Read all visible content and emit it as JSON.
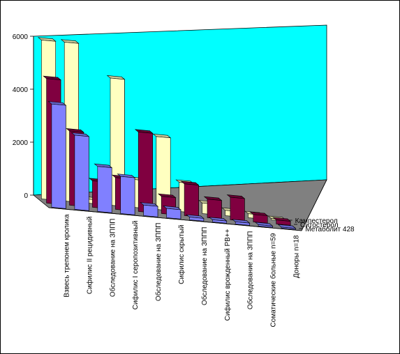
{
  "chart_data": {
    "type": "bar",
    "variant": "3d-depth-columns",
    "categories": [
      "Взвесь трепонем кролика",
      "Сифилис II рецидивный",
      "Обследование на ЗППП",
      "Сифилис I серопозитивный",
      "Обследование на ЗППП",
      "Сифилис скрытый",
      "Обследование на ЗППП",
      "Сифилис врожденный РВ++",
      "Обследование на ЗППП",
      "Соматические больные n=59",
      "Доноры n=18"
    ],
    "series": [
      {
        "name": "Метаболит 428",
        "values": [
          3900,
          2800,
          1700,
          1400,
          400,
          350,
          100,
          80,
          80,
          50,
          40
        ]
      },
      {
        "name": "Ситостерол",
        "values": [
          4700,
          2800,
          1000,
          1200,
          3000,
          650,
          1200,
          700,
          850,
          280,
          150
        ]
      },
      {
        "name": "Кампестерол",
        "values": [
          6000,
          6000,
          150,
          4800,
          1050,
          2750,
          1100,
          400,
          200,
          150,
          50
        ]
      }
    ],
    "yticks": [
      0,
      2000,
      4000,
      6000
    ],
    "ylim": [
      0,
      6000
    ],
    "grid": false,
    "legend": "series labels along depth axis, right",
    "colors": {
      "wall": "#00ffff",
      "floor": "#808080",
      "series": [
        "#8080ff",
        "#800040",
        "#ffffc0"
      ]
    }
  }
}
